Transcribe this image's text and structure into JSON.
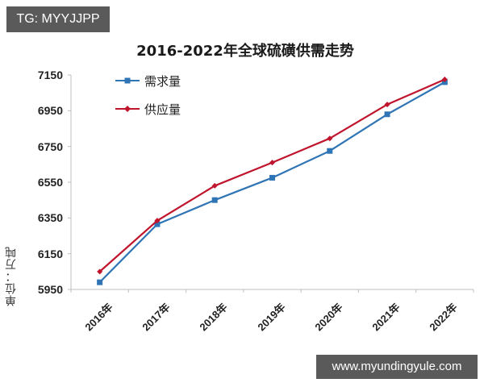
{
  "badge": {
    "text": "TG: MYYJJPP"
  },
  "watermark": {
    "text": "www.myundingyule.com"
  },
  "colors": {
    "demand": "#2f75b5",
    "supply": "#c0142c",
    "axis": "#bfbfbf"
  },
  "chart_data": {
    "type": "line",
    "title": "2016-2022年全球硫磺供需走势",
    "xlabel": "",
    "ylabel": "单位：万吨",
    "categories": [
      "2016年",
      "2017年",
      "2018年",
      "2019年",
      "2020年",
      "2021年",
      "2022年"
    ],
    "series": [
      {
        "name": "需求量",
        "color": "#2f75b5",
        "marker": "square",
        "values": [
          5990,
          6315,
          6450,
          6575,
          6725,
          6930,
          7110
        ]
      },
      {
        "name": "供应量",
        "color": "#c0142c",
        "marker": "diamond",
        "values": [
          6050,
          6335,
          6530,
          6660,
          6795,
          6985,
          7125
        ]
      }
    ],
    "ylim": [
      5950,
      7150
    ],
    "yticks": [
      "7150",
      "6950",
      "6750",
      "6550",
      "6350",
      "6150",
      "5950"
    ],
    "grid": false,
    "legend_position": "upper-left"
  }
}
